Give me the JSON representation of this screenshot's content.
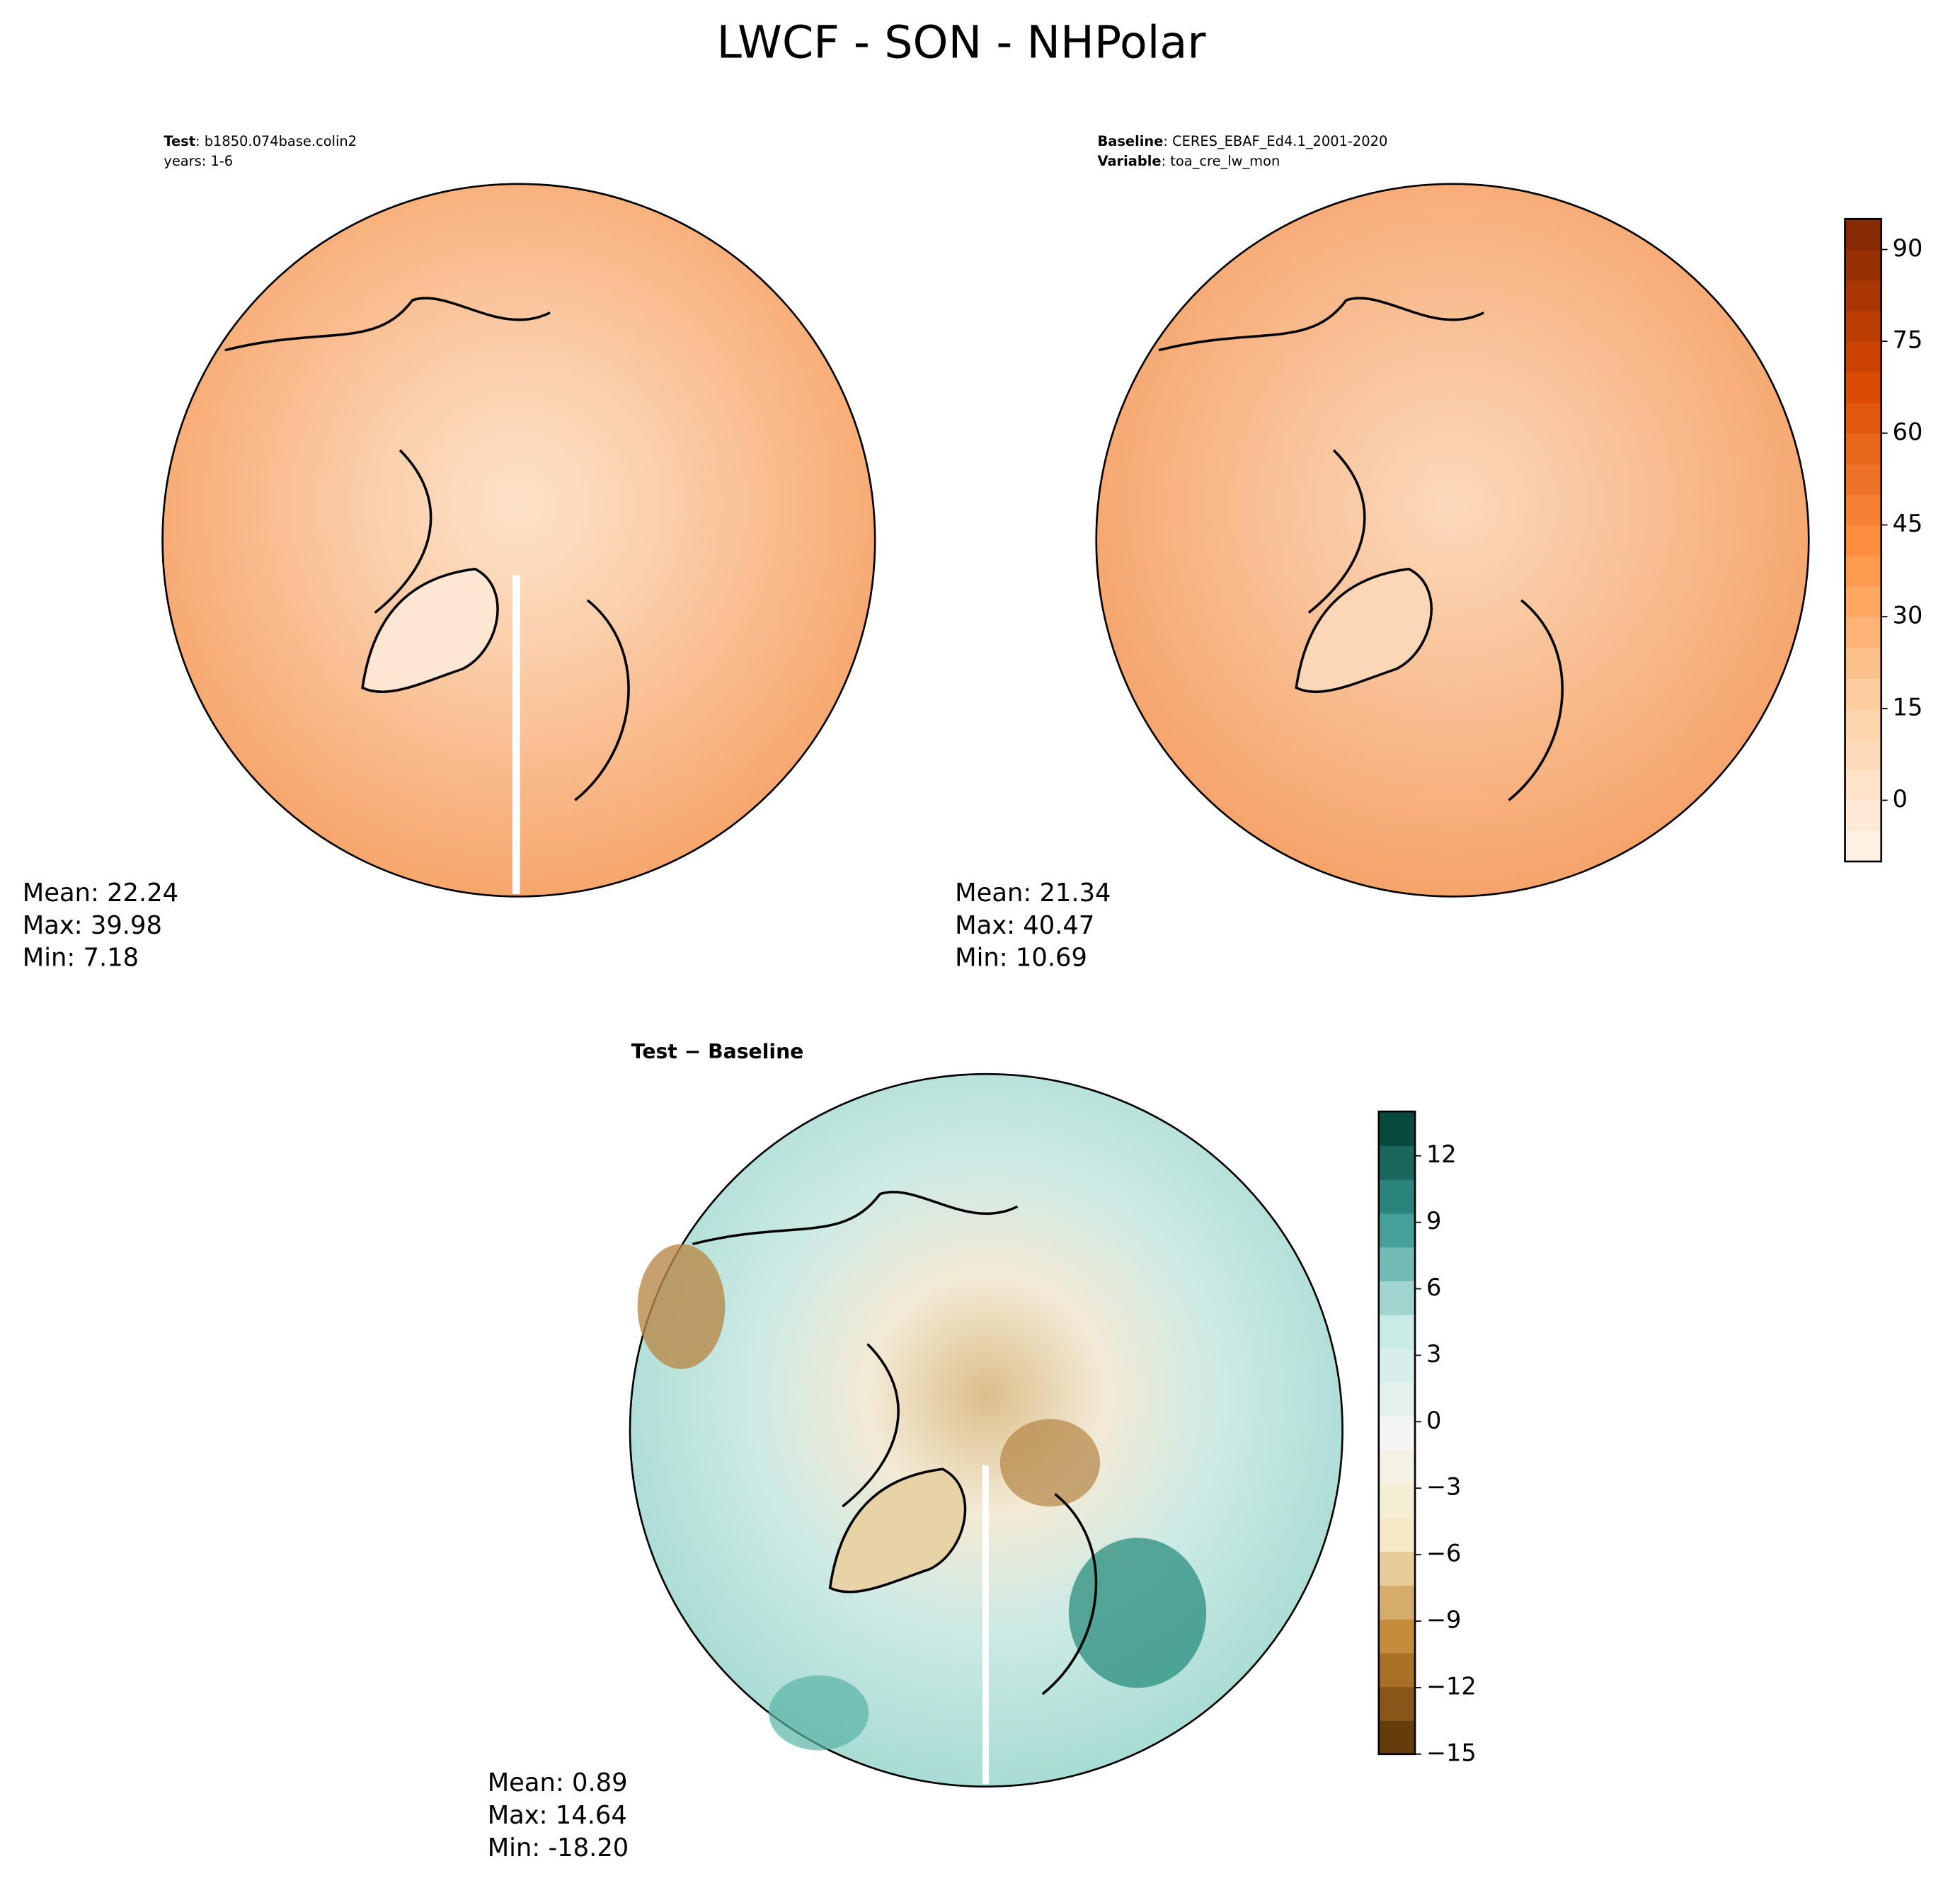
{
  "title": "LWCF - SON - NHPolar",
  "panels": [
    {
      "header": [
        {
          "key": "Test",
          "text": ": b1850.074base.colin2"
        },
        {
          "text": "years: 1-6"
        }
      ],
      "stats": [
        "Mean: 22.24",
        "Max: 39.98",
        "Min:  7.18"
      ]
    },
    {
      "header": [
        {
          "key": "Baseline",
          "text": ": CERES_EBAF_Ed4.1_2001-2020"
        },
        {
          "key": "Variable",
          "text": ": toa_cre_lw_mon"
        }
      ],
      "stats": [
        "Mean: 21.34",
        "Max: 40.47",
        "Min: 10.69"
      ]
    },
    {
      "header": [
        {
          "key": "Test − Baseline"
        }
      ],
      "stats": [
        "Mean:  0.89",
        "Max: 14.64",
        "Min: -18.20"
      ]
    }
  ],
  "colorbars": [
    {
      "lim": [
        -10,
        95
      ],
      "ticks": [
        0,
        15,
        30,
        45,
        60,
        75,
        90
      ]
    },
    {
      "lim": [
        -15,
        14
      ],
      "ticks": [
        {
          "value": -15,
          "label": "−15"
        },
        {
          "value": -12,
          "label": "−12"
        },
        {
          "value": -9,
          "label": "−9"
        },
        {
          "value": -6,
          "label": "−6"
        },
        {
          "value": -3,
          "label": "−3"
        },
        0,
        3,
        6,
        9,
        12
      ]
    }
  ]
}
